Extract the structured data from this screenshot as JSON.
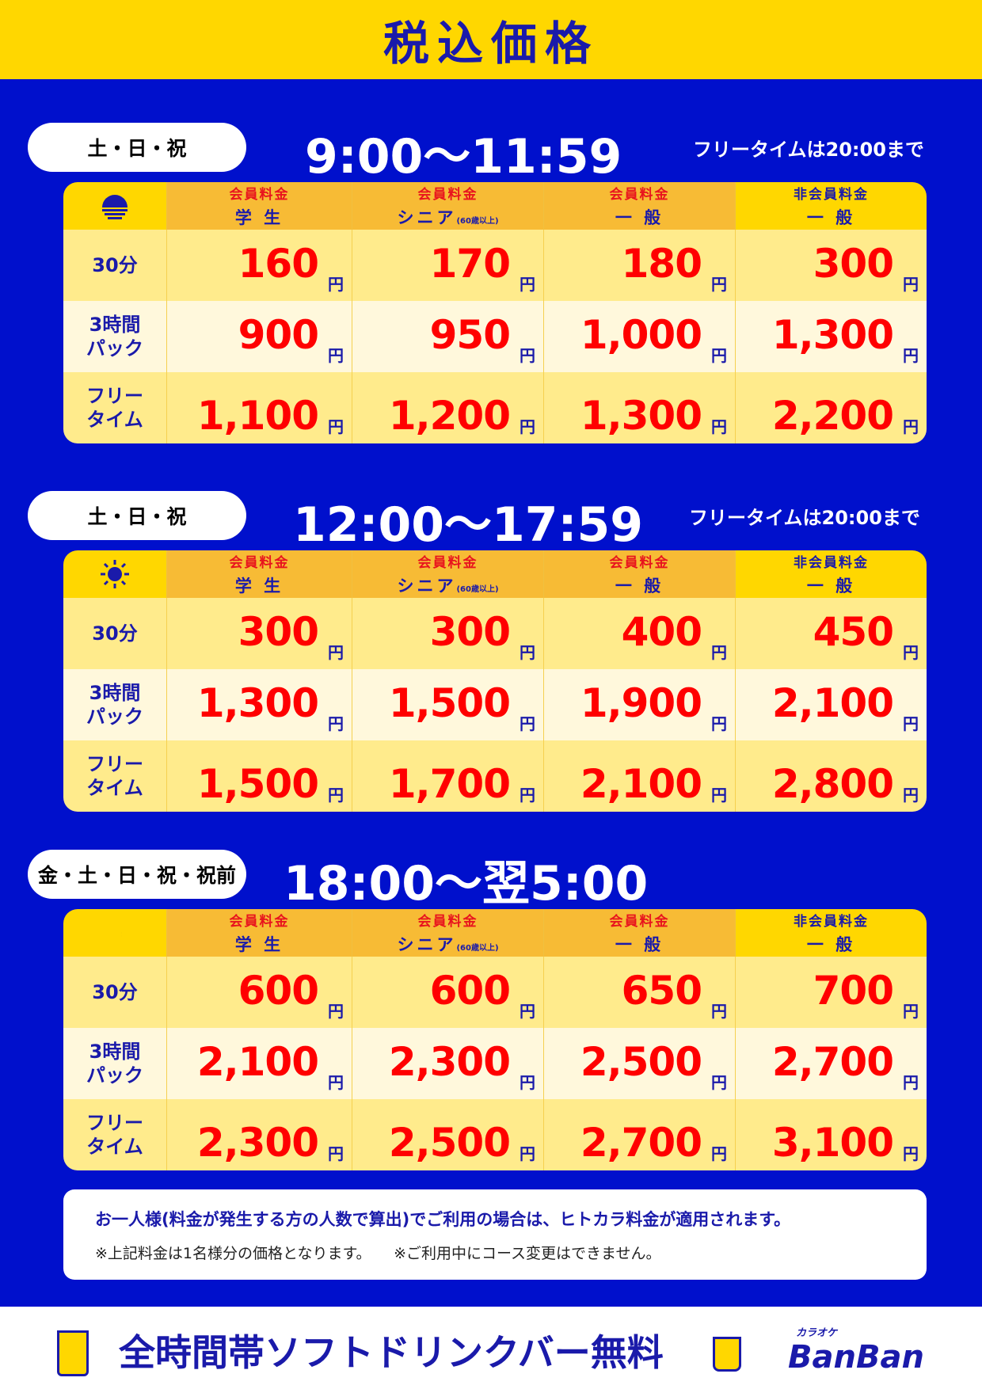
{
  "title": "税込価格",
  "columns": [
    {
      "top": "会員料金",
      "bottom": "学 生",
      "sub": ""
    },
    {
      "top": "会員料金",
      "bottom": "シニア",
      "sub": "(60歳以上)"
    },
    {
      "top": "会員料金",
      "bottom": "一 般",
      "sub": ""
    },
    {
      "top": "非会員料金",
      "bottom": "一 般",
      "sub": ""
    }
  ],
  "row_labels": [
    [
      "30分"
    ],
    [
      "3時間",
      "パック"
    ],
    [
      "フリー",
      "タイム"
    ]
  ],
  "yen": "円",
  "sections": [
    {
      "days": "土・日・祝",
      "time": "9:00〜11:59",
      "note": "フリータイムは20:00まで",
      "icon": "sunrise-icon",
      "prices": [
        [
          "160",
          "170",
          "180",
          "300"
        ],
        [
          "900",
          "950",
          "1,000",
          "1,300"
        ],
        [
          "1,100",
          "1,200",
          "1,300",
          "2,200"
        ]
      ]
    },
    {
      "days": "土・日・祝",
      "time": "12:00〜17:59",
      "note": "フリータイムは20:00まで",
      "icon": "sun-icon",
      "prices": [
        [
          "300",
          "300",
          "400",
          "450"
        ],
        [
          "1,300",
          "1,500",
          "1,900",
          "2,100"
        ],
        [
          "1,500",
          "1,700",
          "2,100",
          "2,800"
        ]
      ]
    },
    {
      "days": "金・土・日・祝・祝前",
      "time": "18:00〜翌5:00",
      "note": "",
      "icon": "moon-icon",
      "prices": [
        [
          "600",
          "600",
          "650",
          "700"
        ],
        [
          "2,100",
          "2,300",
          "2,500",
          "2,700"
        ],
        [
          "2,300",
          "2,500",
          "2,700",
          "3,100"
        ]
      ]
    }
  ],
  "notes": {
    "main": "お一人様(料金が発生する方の人数で算出)でご利用の場合は、ヒトカラ料金が適用されます。",
    "sub1": "※上記料金は1名様分の価格となります。",
    "sub2": "※ご利用中にコース変更はできません。"
  },
  "footer": {
    "text": "全時間帯ソフトドリンクバー無料",
    "logo_small": "カラオケ",
    "logo": "BanBan"
  },
  "colors": {
    "background": "#0010cc",
    "yellow": "#ffd700",
    "price": "#ff0000",
    "text": "#1a1aaa"
  }
}
